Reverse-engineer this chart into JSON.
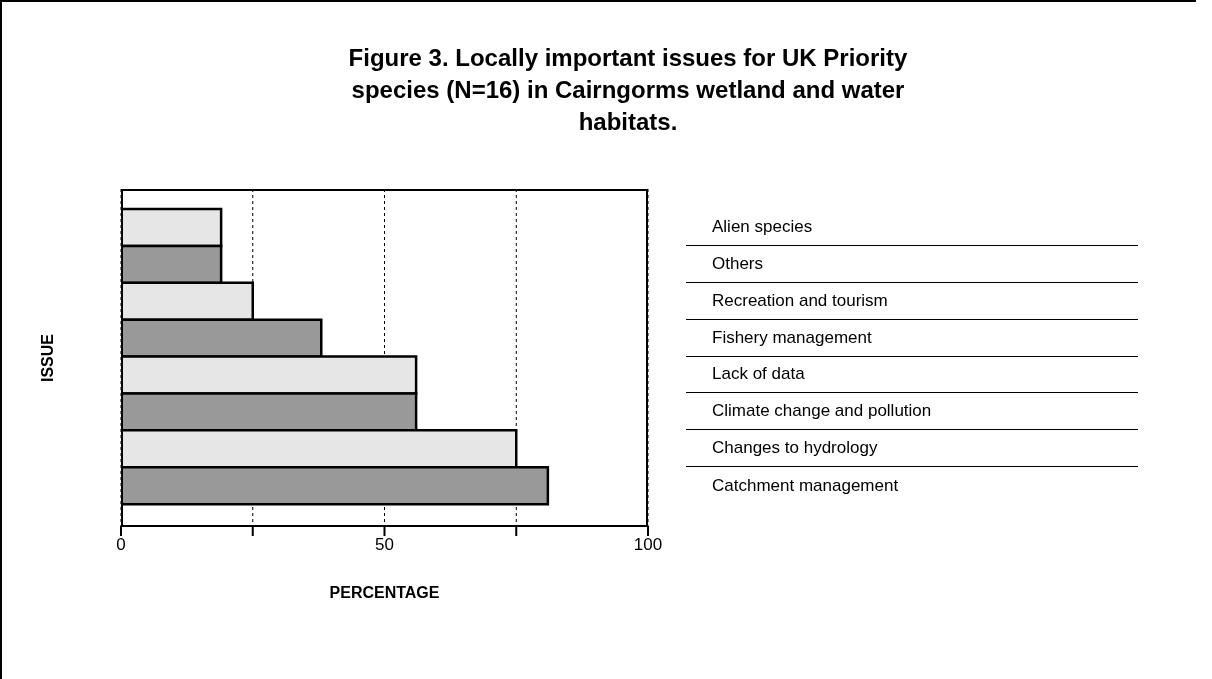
{
  "chart_data": {
    "type": "bar",
    "orientation": "horizontal",
    "title": "Figure 3. Locally important issues for UK Priority species (N=16) in Cairngorms wetland and water habitats.",
    "xlabel": "PERCENTAGE",
    "ylabel": "ISSUE",
    "categories": [
      "Alien species",
      "Others",
      "Recreation and tourism",
      "Fishery management",
      "Lack of data",
      "Climate change and pollution",
      "Changes to hydrology",
      "Catchment management"
    ],
    "values": [
      19,
      19,
      25,
      38,
      56,
      56,
      75,
      81
    ],
    "colors": [
      "#e6e6e6",
      "#999999",
      "#e6e6e6",
      "#999999",
      "#e6e6e6",
      "#999999",
      "#e6e6e6",
      "#999999"
    ],
    "xlim": [
      0,
      100
    ],
    "xticks": [
      0,
      {
        "value": 25,
        "label": null
      },
      50,
      {
        "value": 75,
        "label": null
      },
      100
    ],
    "grid": "x",
    "line_style": "dashed"
  }
}
